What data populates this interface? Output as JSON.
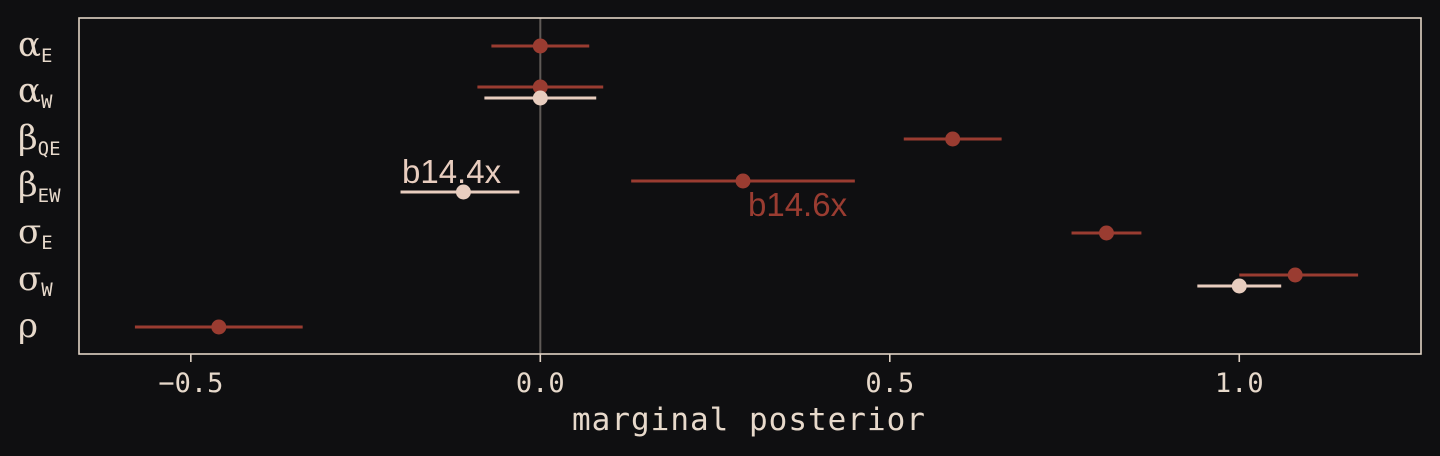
{
  "chart_data": {
    "type": "scatter",
    "xlabel": "marginal posterior",
    "xlim": [
      -0.66,
      1.26
    ],
    "xticks": [
      -0.5,
      0.0,
      0.5,
      1.0
    ],
    "xtick_labels": [
      "−0.5",
      "0.0",
      "0.5",
      "1.0"
    ],
    "parameters": [
      {
        "id": "alpha_E",
        "symbol": "α",
        "sub": "E"
      },
      {
        "id": "alpha_W",
        "symbol": "α",
        "sub": "W"
      },
      {
        "id": "beta_QE",
        "symbol": "β",
        "sub": "QE"
      },
      {
        "id": "beta_EW",
        "symbol": "β",
        "sub": "EW"
      },
      {
        "id": "sigma_E",
        "symbol": "σ",
        "sub": "E"
      },
      {
        "id": "sigma_W",
        "symbol": "σ",
        "sub": "W"
      },
      {
        "id": "rho",
        "symbol": "ρ",
        "sub": ""
      }
    ],
    "series": [
      {
        "name": "b14.6x",
        "color": "#9a3c31",
        "points": [
          {
            "param": "alpha_E",
            "mean": 0.0,
            "lo": -0.07,
            "hi": 0.07
          },
          {
            "param": "alpha_W",
            "mean": 0.0,
            "lo": -0.09,
            "hi": 0.09
          },
          {
            "param": "beta_QE",
            "mean": 0.59,
            "lo": 0.52,
            "hi": 0.66
          },
          {
            "param": "beta_EW",
            "mean": 0.29,
            "lo": 0.13,
            "hi": 0.45
          },
          {
            "param": "sigma_E",
            "mean": 0.81,
            "lo": 0.76,
            "hi": 0.86
          },
          {
            "param": "sigma_W",
            "mean": 1.08,
            "lo": 1.0,
            "hi": 1.17
          },
          {
            "param": "rho",
            "mean": -0.46,
            "lo": -0.58,
            "hi": -0.34
          }
        ]
      },
      {
        "name": "b14.4x",
        "color": "#e8cdbf",
        "points": [
          {
            "param": "alpha_W",
            "mean": 0.0,
            "lo": -0.08,
            "hi": 0.08
          },
          {
            "param": "beta_EW",
            "mean": -0.11,
            "lo": -0.2,
            "hi": -0.03
          },
          {
            "param": "sigma_W",
            "mean": 1.0,
            "lo": 0.94,
            "hi": 1.06
          }
        ]
      }
    ],
    "vline": 0.0,
    "grid": false,
    "legend": "none"
  },
  "colors": {
    "background": "#0f0f11",
    "frame": "#e0d2c4",
    "zero_line": "#5f5a57",
    "text": "#e7d9cb"
  }
}
